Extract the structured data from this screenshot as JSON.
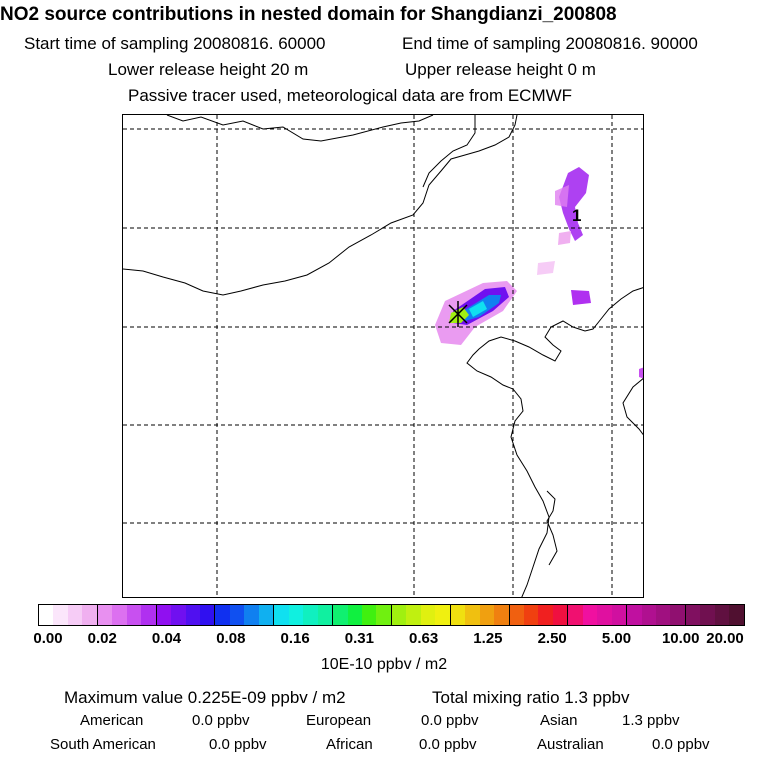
{
  "title": "NO2 source contributions in nested domain for Shangdianzi_200808",
  "time": {
    "start": "Start time of sampling 20080816. 60000",
    "end": "End time of sampling 20080816. 90000"
  },
  "height": {
    "lower": "Lower release height   20 m",
    "upper": "Upper release height    0 m"
  },
  "tracer_note": "Passive tracer used, meteorological data are from ECMWF",
  "map": {
    "marker_label": "1",
    "colors": {
      "grid": "#000000",
      "coast": "#000000"
    }
  },
  "colorbar": {
    "ticks": [
      "0.00",
      "0.02",
      "0.04",
      "0.08",
      "0.16",
      "0.31",
      "0.63",
      "1.25",
      "2.50",
      "5.00",
      "10.00",
      "20.00"
    ],
    "units": "10E-10 ppbv / m2",
    "colors": [
      "#ffffff",
      "#fbe6fb",
      "#f6ccf6",
      "#f0b0f0",
      "#e890f0",
      "#dc70f0",
      "#c850f0",
      "#b030f0",
      "#9010f0",
      "#7010f0",
      "#5010f0",
      "#3010f0",
      "#1030f0",
      "#1050f0",
      "#1080f0",
      "#10b0f0",
      "#10e0f0",
      "#10f0e0",
      "#10f0c0",
      "#10f0a0",
      "#10f070",
      "#10f040",
      "#40f010",
      "#70f010",
      "#a0f010",
      "#c0f010",
      "#e0f010",
      "#f0f010",
      "#f0e010",
      "#f0c010",
      "#f0a010",
      "#f08010",
      "#f06010",
      "#f04010",
      "#f02020",
      "#f01040",
      "#f01070",
      "#f010a0",
      "#e010a0",
      "#d010a0",
      "#c010a0",
      "#b01090",
      "#a01080",
      "#901070",
      "#801060",
      "#701050",
      "#601040",
      "#501030"
    ]
  },
  "stats": {
    "max": "Maximum value  0.225E-09 ppbv / m2",
    "total": "Total mixing ratio       1.3 ppbv"
  },
  "regions": {
    "american": {
      "label": "American",
      "value": "0.0 ppbv"
    },
    "european": {
      "label": "European",
      "value": "0.0 ppbv"
    },
    "asian": {
      "label": "Asian",
      "value": "1.3 ppbv"
    },
    "south_american": {
      "label": "South American",
      "value": "0.0 ppbv"
    },
    "african": {
      "label": "African",
      "value": "0.0 ppbv"
    },
    "australian": {
      "label": "Australian",
      "value": "0.0 ppbv"
    }
  }
}
